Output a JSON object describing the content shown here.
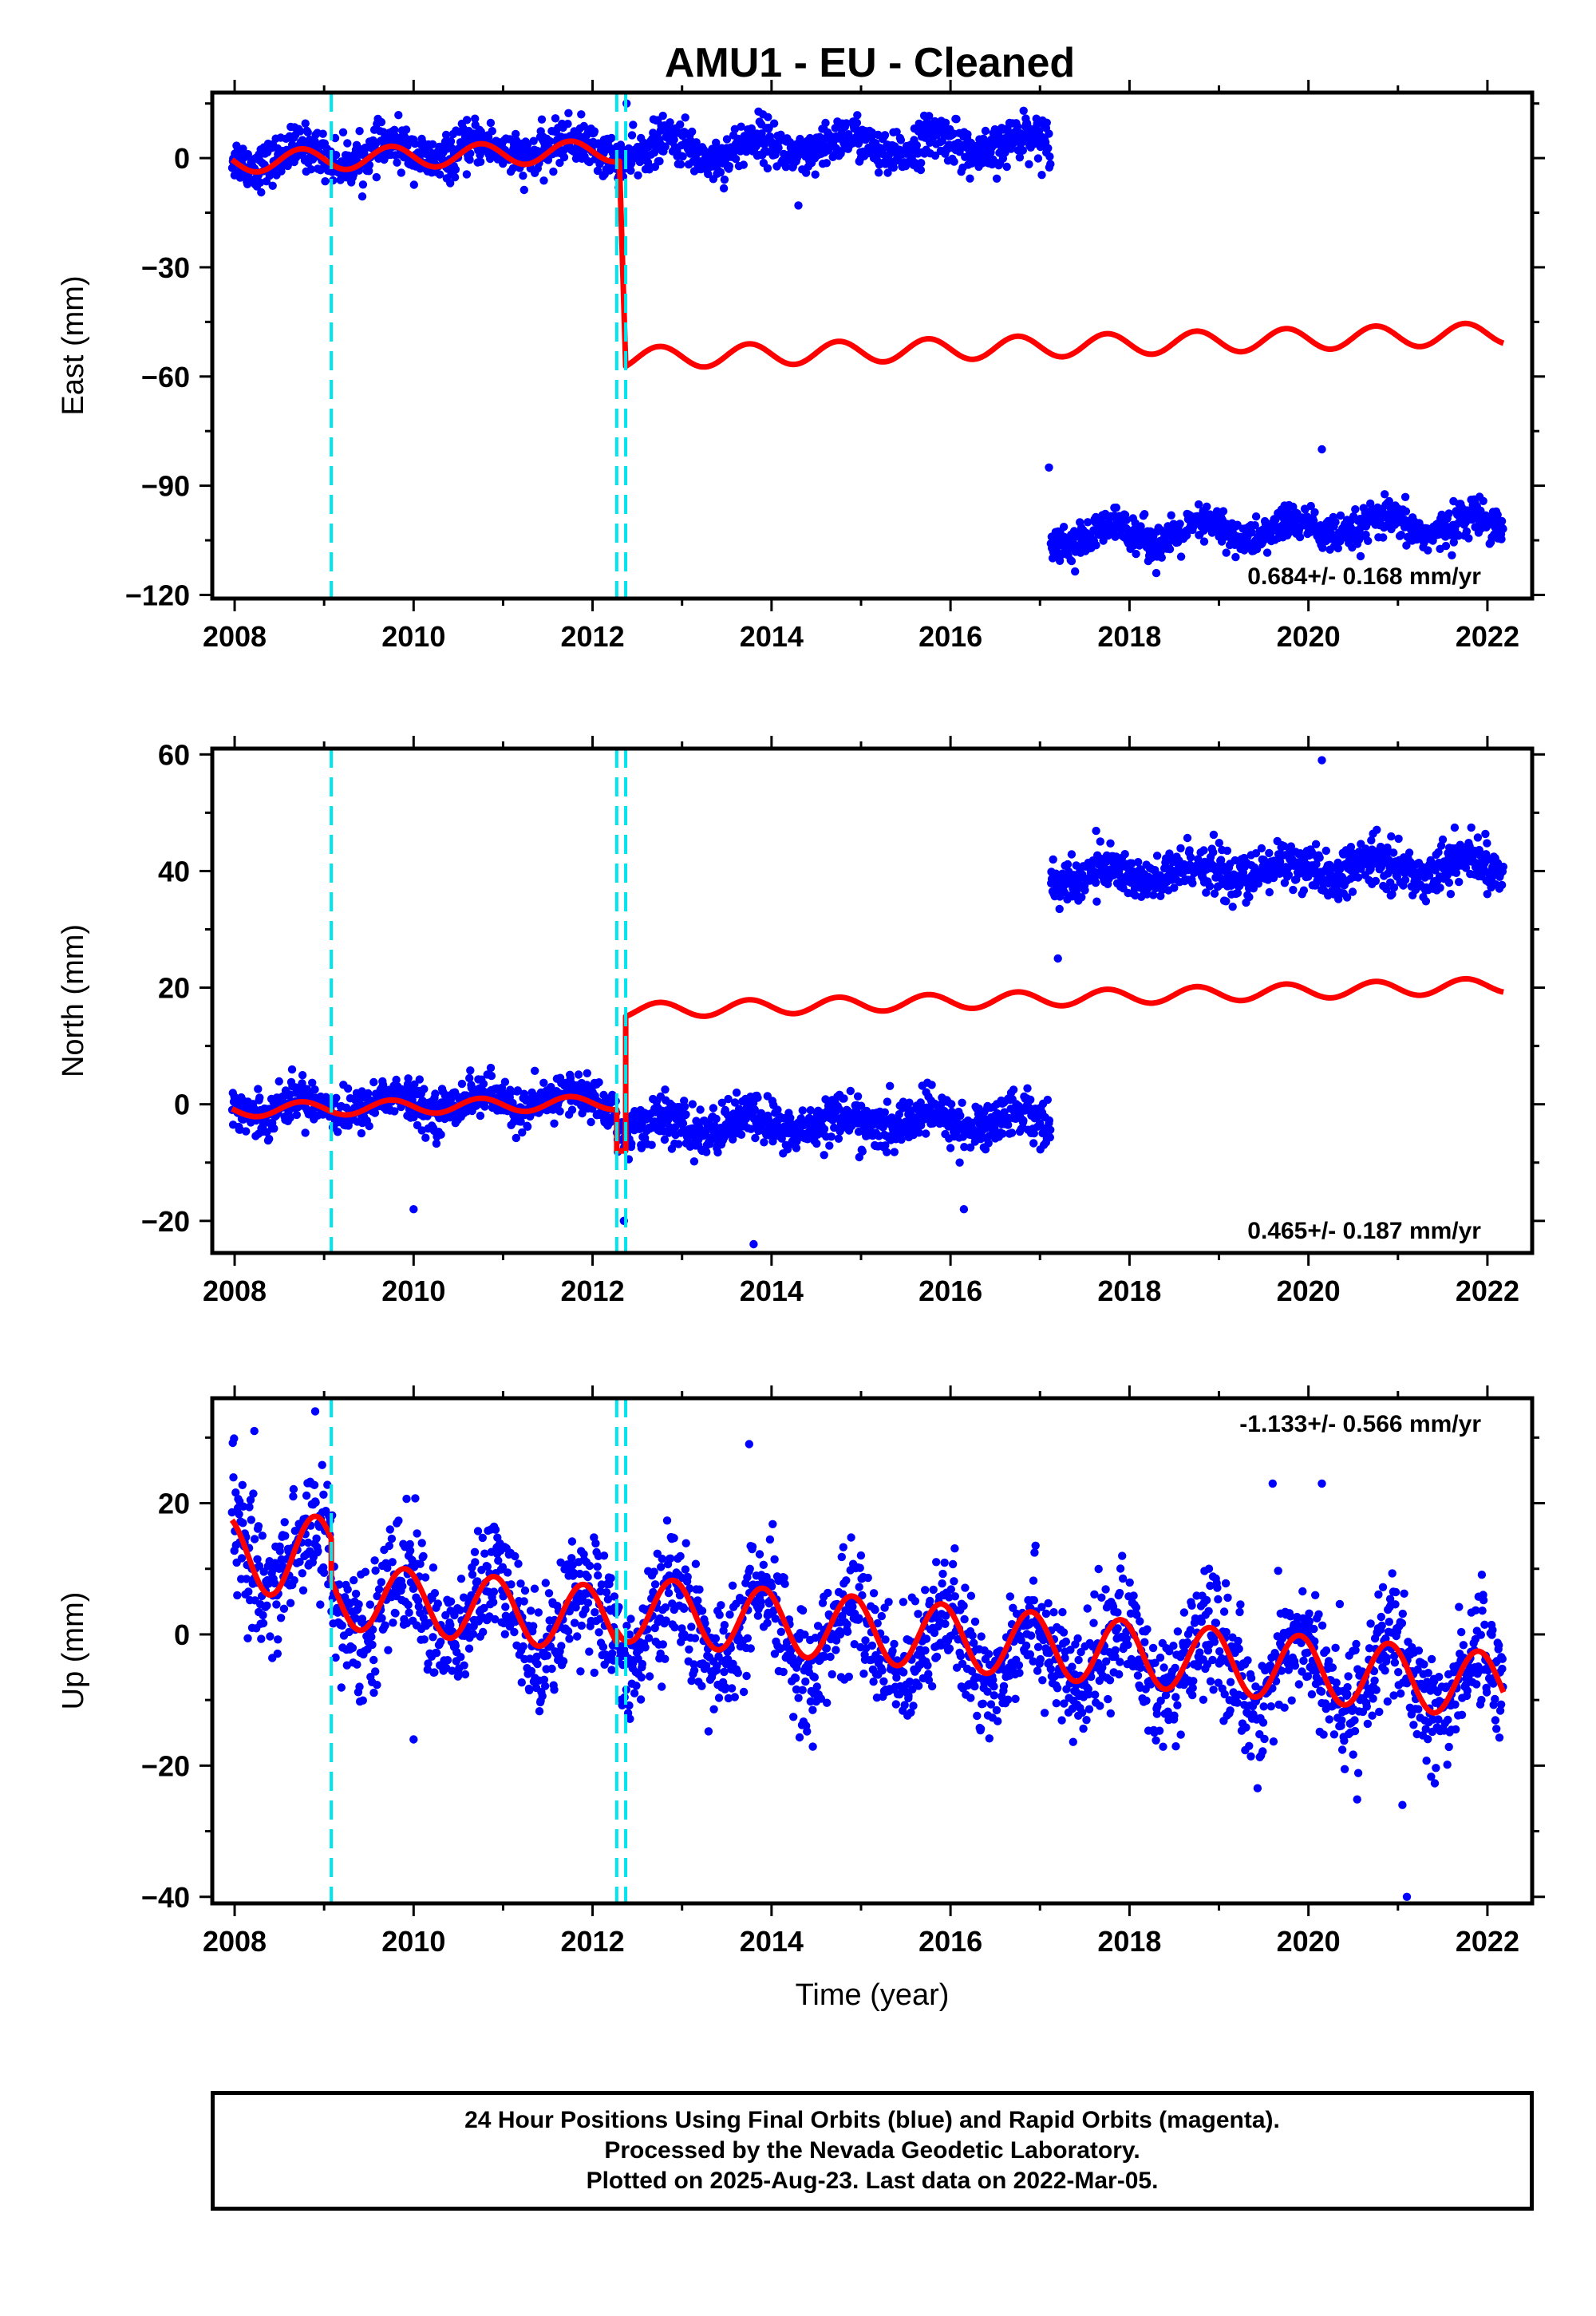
{
  "title": "AMU1  - EU - Cleaned",
  "xlabel": "Time (year)",
  "footer": {
    "line1": "24 Hour Positions Using Final Orbits (blue) and Rapid Orbits (magenta).",
    "line2": "Processed by the Nevada Geodetic Laboratory.",
    "line3": "Plotted on 2025-Aug-23. Last data on 2022-Mar-05."
  },
  "colors": {
    "data": "#0000ff",
    "model": "#ff0000",
    "event": "#00e5ee",
    "frame": "#000000"
  },
  "chart_data": [
    {
      "type": "scatter",
      "component": "East",
      "ylabel": "East (mm)",
      "rate": "0.684+/- 0.168 mm/yr",
      "xlim": [
        2007.75,
        2022.5
      ],
      "ylim": [
        -121,
        18
      ],
      "xticks": [
        2008,
        2010,
        2012,
        2014,
        2016,
        2018,
        2020,
        2022
      ],
      "yticks": [
        -120,
        -90,
        -60,
        -30,
        0
      ],
      "events": [
        2009.08,
        2012.27,
        2012.37
      ],
      "data_segments": [
        {
          "start": 2007.97,
          "end": 2012.27,
          "offset": 0,
          "trend": 0.7,
          "amp": 2.5,
          "phase": 0.5,
          "noise": 3,
          "density": 160
        },
        {
          "start": 2012.27,
          "end": 2017.12,
          "offset": 2,
          "trend": 0.4,
          "amp": 3,
          "phase": 0.6,
          "noise": 3,
          "density": 160
        },
        {
          "start": 2017.12,
          "end": 2022.18,
          "offset": -104,
          "trend": 0.7,
          "amp": 2.5,
          "phase": 0.6,
          "noise": 2.5,
          "density": 160
        }
      ],
      "outliers": [
        [
          2020.15,
          -80
        ],
        [
          2017.1,
          -85
        ],
        [
          2014.3,
          -13
        ],
        [
          2012.38,
          15
        ],
        [
          2018.3,
          -114
        ]
      ],
      "model_segments": [
        {
          "start": 2007.97,
          "end": 2012.3,
          "offset": -1,
          "trend": 0.7,
          "amp": 3,
          "phase": 0.5
        },
        {
          "start": 2012.37,
          "end": 2022.18,
          "offset": -55,
          "trend": 0.7,
          "amp": 3,
          "phase": 0.5
        }
      ]
    },
    {
      "type": "scatter",
      "component": "North",
      "ylabel": "North (mm)",
      "rate": "0.465+/- 0.187 mm/yr",
      "xlim": [
        2007.75,
        2022.5
      ],
      "ylim": [
        -25.5,
        61
      ],
      "xticks": [
        2008,
        2010,
        2012,
        2014,
        2016,
        2018,
        2020,
        2022
      ],
      "yticks": [
        -20,
        0,
        20,
        40,
        60
      ],
      "events": [
        2009.08,
        2012.27,
        2012.37
      ],
      "data_segments": [
        {
          "start": 2007.97,
          "end": 2012.27,
          "offset": -0.5,
          "trend": 0.3,
          "amp": 1.5,
          "phase": 0.5,
          "noise": 1.8,
          "density": 160
        },
        {
          "start": 2012.27,
          "end": 2017.12,
          "offset": -4,
          "trend": 0.3,
          "amp": 1.5,
          "phase": 0.5,
          "noise": 2,
          "density": 160
        },
        {
          "start": 2017.12,
          "end": 2022.18,
          "offset": 39,
          "trend": 0.4,
          "amp": 1.5,
          "phase": 0.5,
          "noise": 2,
          "density": 160
        }
      ],
      "outliers": [
        [
          2020.15,
          59
        ],
        [
          2013.8,
          -24
        ],
        [
          2012.35,
          -20
        ],
        [
          2010.0,
          -18
        ],
        [
          2017.2,
          25
        ],
        [
          2016.15,
          -18
        ]
      ],
      "model_segments": [
        {
          "start": 2007.97,
          "end": 2012.27,
          "offset": -1,
          "trend": 0.3,
          "amp": 1.2,
          "phase": 0.5
        },
        {
          "start": 2012.27,
          "end": 2012.37,
          "offset": -8,
          "trend": 0,
          "amp": 0,
          "phase": 0
        },
        {
          "start": 2012.37,
          "end": 2022.18,
          "offset": 16,
          "trend": 0.45,
          "amp": 1.3,
          "phase": 0.5
        }
      ]
    },
    {
      "type": "scatter",
      "component": "Up",
      "ylabel": "Up (mm)",
      "rate": "-1.133+/- 0.566 mm/yr",
      "xlim": [
        2007.75,
        2022.5
      ],
      "ylim": [
        -41,
        36
      ],
      "xticks": [
        2008,
        2010,
        2012,
        2014,
        2016,
        2018,
        2020,
        2022
      ],
      "yticks": [
        -40,
        -20,
        0,
        20
      ],
      "events": [
        2009.08,
        2012.27,
        2012.37
      ],
      "data_segments": [
        {
          "start": 2007.97,
          "end": 2009.08,
          "offset": 12,
          "trend": 0,
          "amp": 5,
          "phase": 0.65,
          "noise": 5,
          "density": 160
        },
        {
          "start": 2009.08,
          "end": 2022.18,
          "offset": 5,
          "trend": -1.0,
          "amp": 5.5,
          "phase": 0.65,
          "noise": 4.5,
          "density": 160
        }
      ],
      "outliers": [
        [
          2008.9,
          34
        ],
        [
          2008.22,
          31
        ],
        [
          2013.75,
          29
        ],
        [
          2021.1,
          -40
        ],
        [
          2021.05,
          -26
        ],
        [
          2019.6,
          23
        ],
        [
          2020.15,
          23
        ],
        [
          2010.0,
          -16
        ]
      ],
      "model_segments": [
        {
          "start": 2007.97,
          "end": 2009.08,
          "offset": 12,
          "trend": 0,
          "amp": 6,
          "phase": 0.65
        },
        {
          "start": 2009.08,
          "end": 2012.27,
          "offset": 6,
          "trend": -1.2,
          "amp": 5,
          "phase": 0.65
        },
        {
          "start": 2012.27,
          "end": 2022.18,
          "offset": 4,
          "trend": -1.2,
          "amp": 5,
          "phase": 0.65
        }
      ]
    }
  ]
}
